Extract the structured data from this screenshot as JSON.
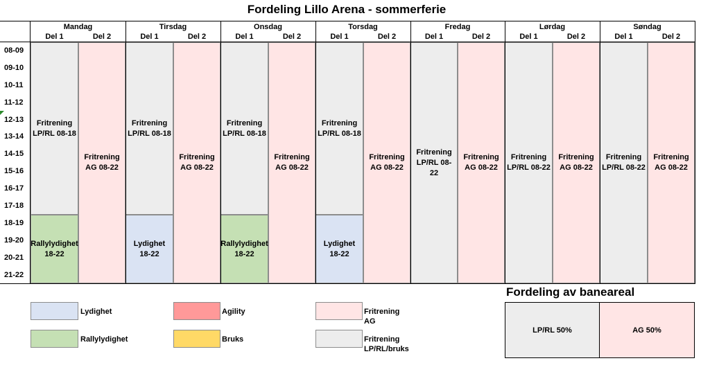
{
  "title": "Fordeling Lillo Arena - sommerferie",
  "days": [
    {
      "name": "Mandag",
      "part1": "Del 1",
      "part2": "Del 2"
    },
    {
      "name": "Tirsdag",
      "part1": "Del 1",
      "part2": "Del 2"
    },
    {
      "name": "Onsdag",
      "part1": "Del 1",
      "part2": "Del 2"
    },
    {
      "name": "Torsdag",
      "part1": "Del 1",
      "part2": "Del 2"
    },
    {
      "name": "Fredag",
      "part1": "Del 1",
      "part2": "Del 2"
    },
    {
      "name": "Lørdag",
      "part1": "Del 1",
      "part2": "Del 2"
    },
    {
      "name": "Søndag",
      "part1": "Del 1",
      "part2": "Del 2"
    }
  ],
  "times": [
    "08-09",
    "09-10",
    "10-11",
    "11-12",
    "12-13",
    "13-14",
    "14-15",
    "15-16",
    "16-17",
    "17-18",
    "18-19",
    "19-20",
    "20-21",
    "21-22"
  ],
  "schedule": {
    "mon_d1_a": "Fritrening LP/RL 08-18",
    "mon_d1_b": "Rallylydighet 18-22",
    "mon_d2": "Fritrening AG 08-22",
    "tue_d1_a": "Fritrening LP/RL 08-18",
    "tue_d1_b": "Lydighet 18-22",
    "tue_d2": "Fritrening AG 08-22",
    "wed_d1_a": "Fritrening LP/RL 08-18",
    "wed_d1_b": "Rallylydighet 18-22",
    "wed_d2": "Fritrening AG 08-22",
    "thu_d1_a": "Fritrening LP/RL 08-18",
    "thu_d1_b": "Lydighet 18-22",
    "thu_d2": "Fritrening AG 08-22",
    "fri_d1": "Fritrening LP/RL 08-22",
    "fri_d2": "Fritrening AG 08-22",
    "sat_d1": "Fritrening LP/RL 08-22",
    "sat_d2": "Fritrening AG 08-22",
    "sun_d1": "Fritrening LP/RL 08-22",
    "sun_d2": "Fritrening AG 08-22"
  },
  "legend": {
    "lydighet": "Lydighet",
    "rallylydighet": "Rallylydighet",
    "agility": "Agility",
    "bruks": "Bruks",
    "fritrening_ag": "Fritrening AG",
    "fritrening_lp": "Fritrening LP/RL/bruks"
  },
  "area": {
    "title": "Fordeling av baneareal",
    "lp_rl": "LP/RL 50%",
    "ag": "AG 50%"
  },
  "colors": {
    "lydighet": "#dae3f3",
    "rallylydighet": "#c5e0b4",
    "agility": "#ff9999",
    "bruks": "#ffd966",
    "fritrening_ag": "#ffe5e5",
    "fritrening_lp": "#ededed"
  }
}
